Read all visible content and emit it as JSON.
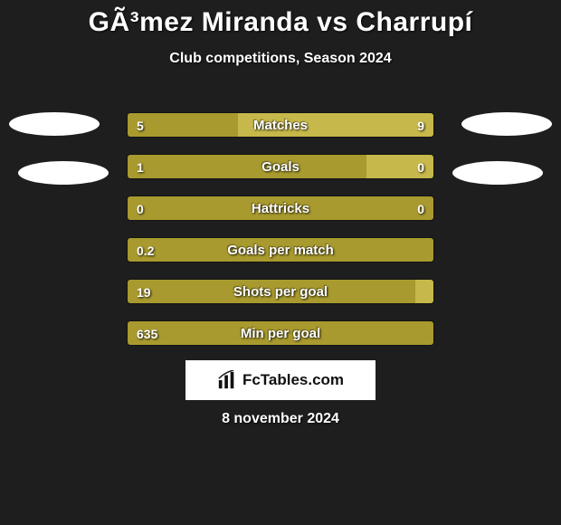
{
  "title": "GÃ³mez Miranda vs Charrupí",
  "subtitle": "Club competitions, Season 2024",
  "date": "8 november 2024",
  "logo_text": "FcTables.com",
  "colors": {
    "olive": "#a89a2e",
    "light_olive": "#c6b84a",
    "background": "#1e1e1e"
  },
  "bars": [
    {
      "label": "Matches",
      "left_value": "5",
      "right_value": "9",
      "left_color": "#a89a2e",
      "right_color": "#c6b84a",
      "left_pct": 36,
      "right_pct": 64
    },
    {
      "label": "Goals",
      "left_value": "1",
      "right_value": "0",
      "left_color": "#a89a2e",
      "right_color": "#c6b84a",
      "left_pct": 78,
      "right_pct": 22
    },
    {
      "label": "Hattricks",
      "left_value": "0",
      "right_value": "0",
      "left_color": "#a89a2e",
      "right_color": "#c6b84a",
      "left_pct": 100,
      "right_pct": 0
    },
    {
      "label": "Goals per match",
      "left_value": "0.2",
      "right_value": "",
      "left_color": "#a89a2e",
      "right_color": "#c6b84a",
      "left_pct": 100,
      "right_pct": 0
    },
    {
      "label": "Shots per goal",
      "left_value": "19",
      "right_value": "",
      "left_color": "#a89a2e",
      "right_color": "#c6b84a",
      "left_pct": 94,
      "right_pct": 6
    },
    {
      "label": "Min per goal",
      "left_value": "635",
      "right_value": "",
      "left_color": "#a89a2e",
      "right_color": "#c6b84a",
      "left_pct": 100,
      "right_pct": 0
    }
  ]
}
